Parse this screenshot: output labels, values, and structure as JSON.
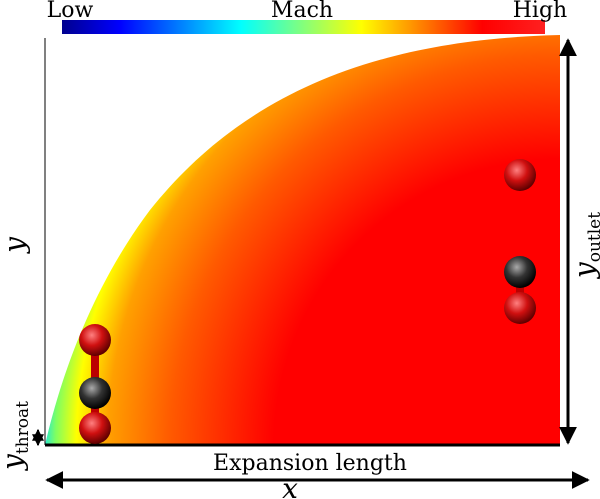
{
  "colorbar": {
    "low": "Low",
    "title": "Mach",
    "high": "High"
  },
  "labels": {
    "expansion": "Expansion length",
    "x": "x",
    "y": "y",
    "y_outlet": {
      "base": "y",
      "sub": "outlet"
    },
    "y_throat": {
      "base": "y",
      "sub": "throat"
    }
  }
}
